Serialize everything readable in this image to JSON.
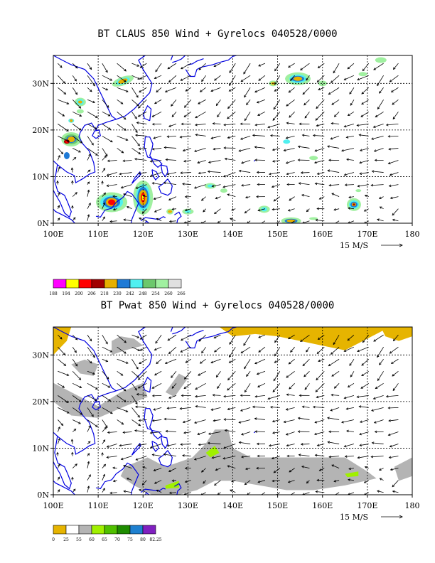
{
  "panels": [
    {
      "title": "BT CLAUS 850 Wind + Gyrelocs 040528/0000",
      "lat_labels": [
        "30N",
        "20N",
        "10N",
        "0N"
      ],
      "lon_labels": [
        "100E",
        "110E",
        "120E",
        "130E",
        "140E",
        "150E",
        "160E",
        "170E",
        "180"
      ],
      "ref_vector": "15 M/S",
      "colorbar_colors": [
        "#ff00ff",
        "#ffff00",
        "#ff0000",
        "#a00000",
        "#e6b000",
        "#1e7ad6",
        "#50f0f0",
        "#6cc86c",
        "#a0f0a0",
        "#e0e0e0"
      ],
      "colorbar_labels": [
        "188",
        "194",
        "200",
        "206",
        "218",
        "230",
        "242",
        "248",
        "254",
        "260",
        "266"
      ]
    },
    {
      "title": "BT Pwat 850 Wind + Gyrelocs 040528/0000",
      "lat_labels": [
        "30N",
        "20N",
        "10N",
        "0N"
      ],
      "lon_labels": [
        "100E",
        "110E",
        "120E",
        "130E",
        "140E",
        "150E",
        "160E",
        "170E",
        "180"
      ],
      "ref_vector": "15 M/S",
      "colorbar_colors": [
        "#e6b400",
        "#ffffff",
        "#b4b4b4",
        "#a0f000",
        "#50c000",
        "#1e8c00",
        "#1e80d0",
        "#8020c0"
      ],
      "colorbar_labels": [
        "0",
        "25",
        "55",
        "60",
        "65",
        "70",
        "75",
        "80",
        "82.25"
      ]
    }
  ]
}
